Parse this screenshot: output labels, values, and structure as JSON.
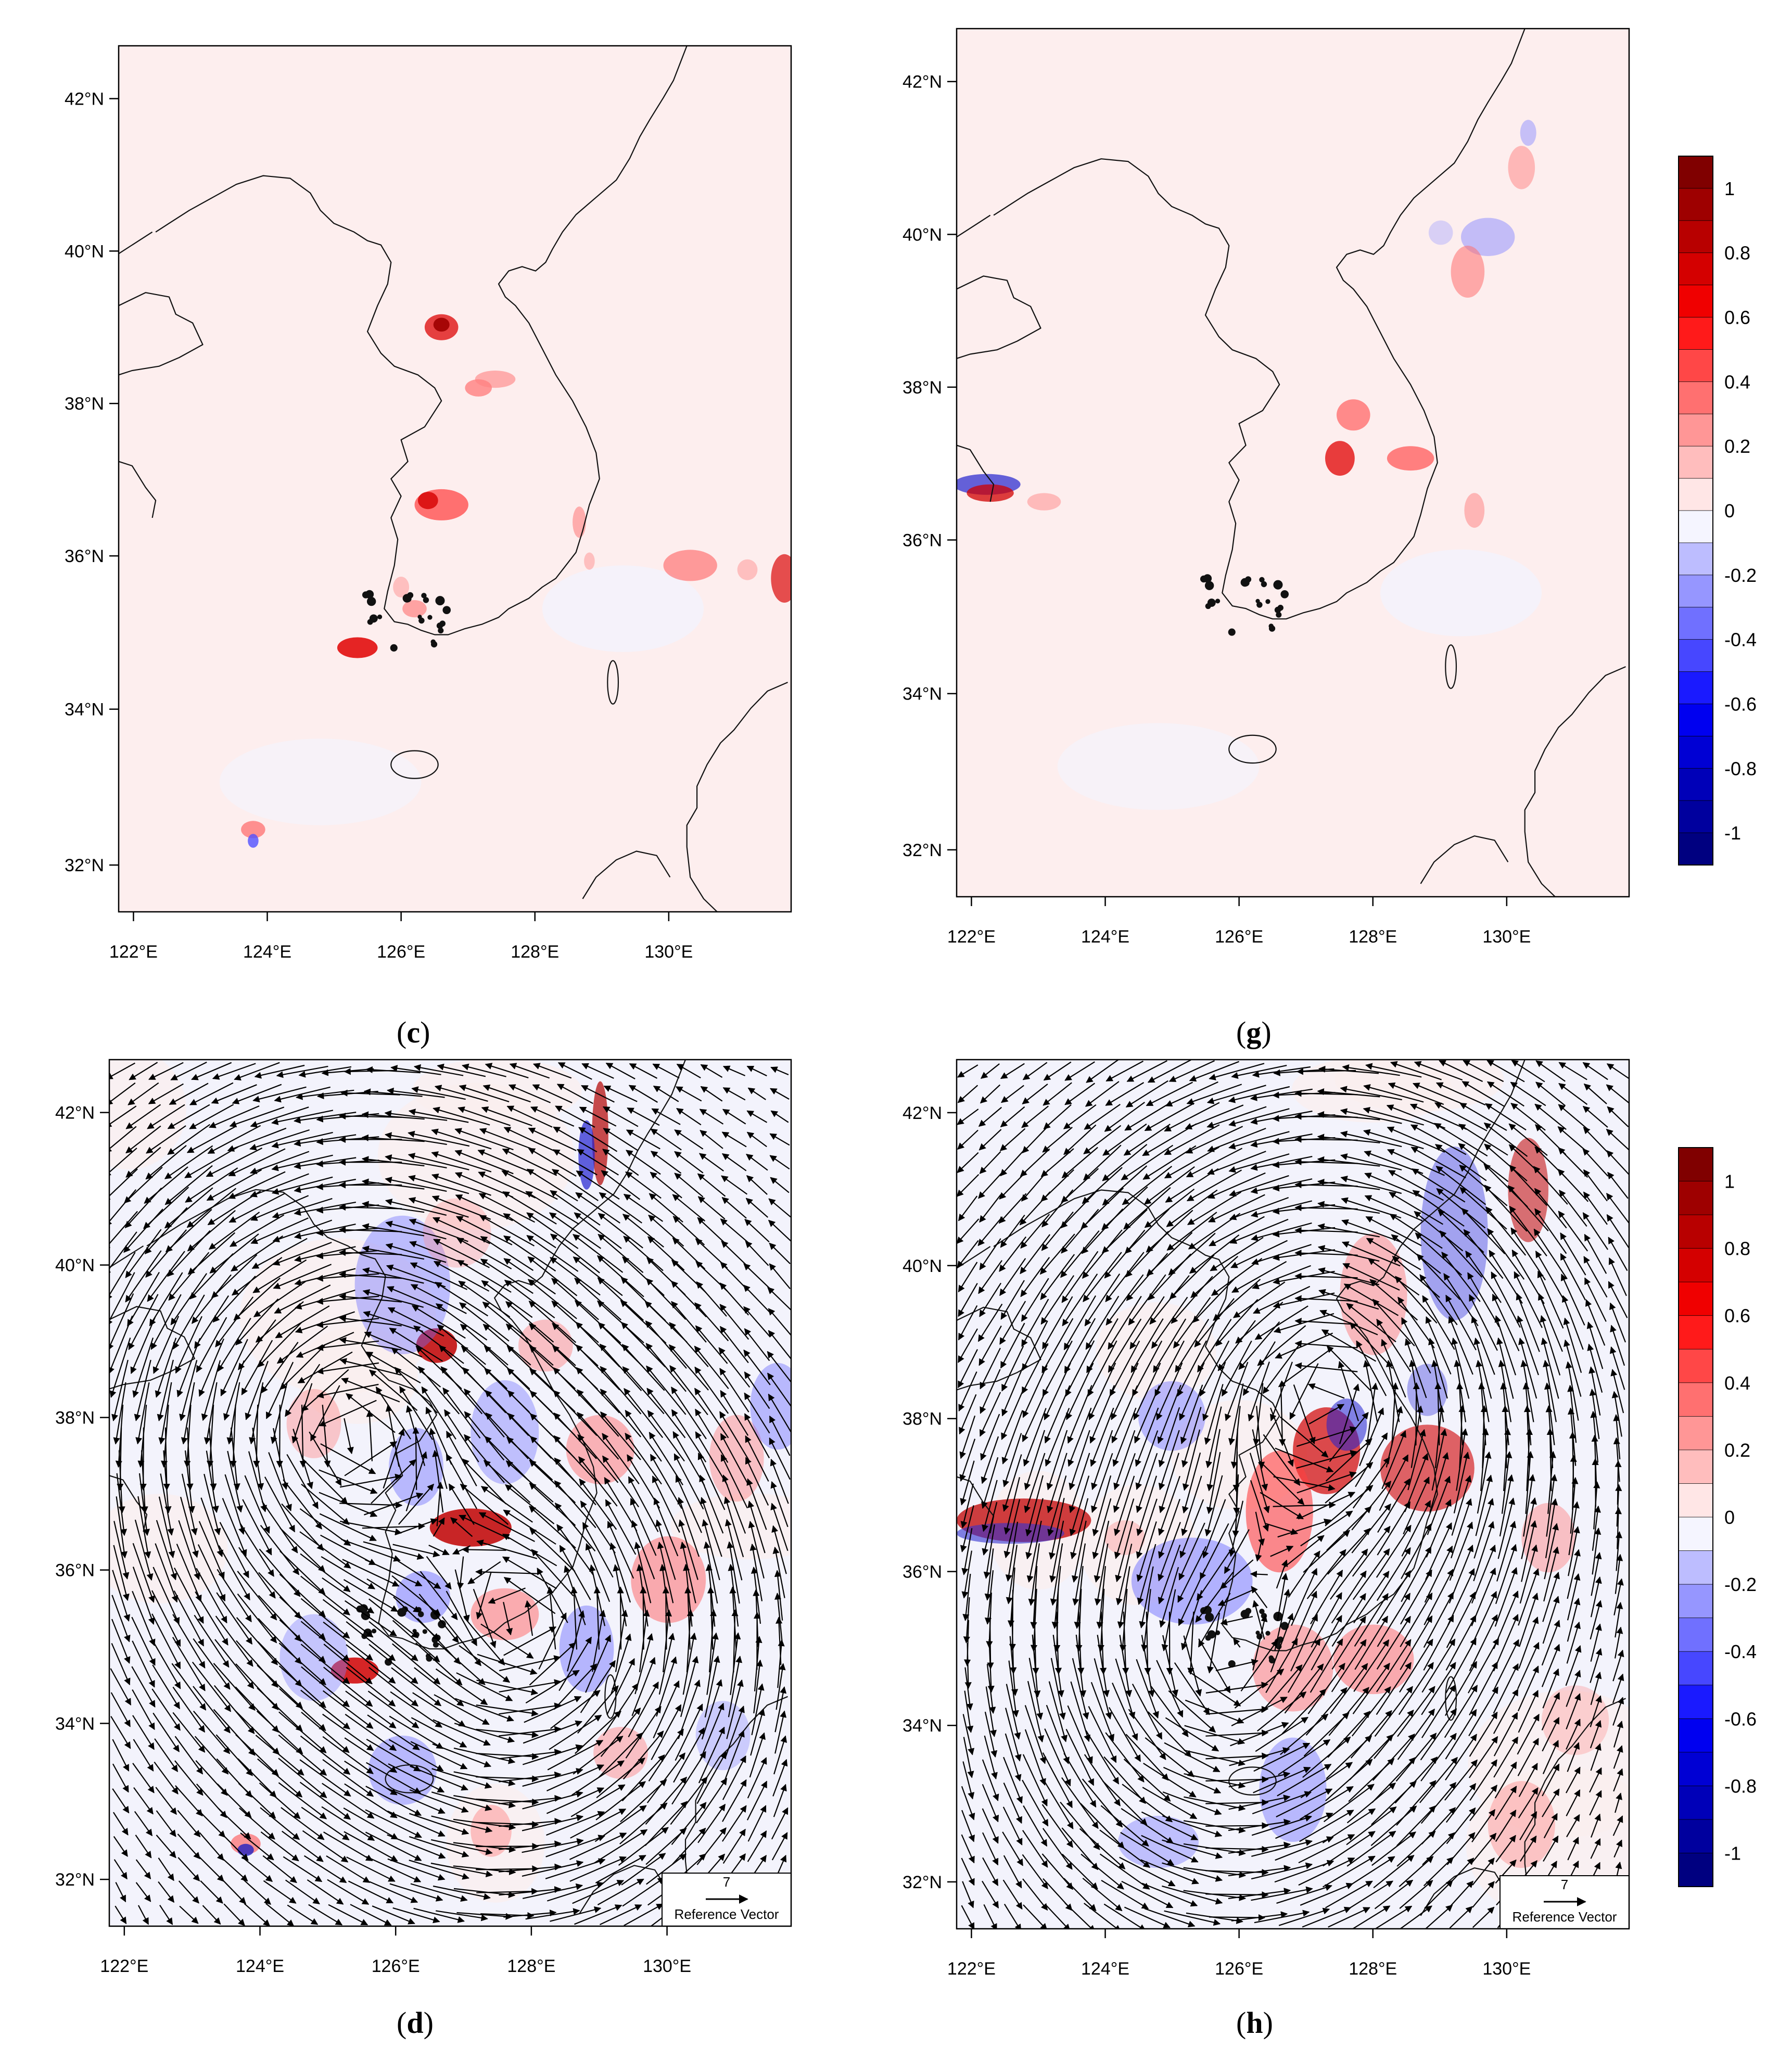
{
  "panels": [
    {
      "id": "c",
      "label": "c",
      "vectors": false,
      "lon_labels": [
        "122°E",
        "124°E",
        "126°E",
        "128°E",
        "130°E"
      ],
      "lat_labels": [
        "42°N",
        "40°N",
        "38°N",
        "36°N",
        "34°N",
        "32°N"
      ]
    },
    {
      "id": "g",
      "label": "g",
      "vectors": false,
      "lon_labels": [
        "122°E",
        "124°E",
        "126°E",
        "128°E",
        "130°E"
      ],
      "lat_labels": [
        "42°N",
        "40°N",
        "38°N",
        "36°N",
        "34°N",
        "32°N"
      ]
    },
    {
      "id": "d",
      "label": "d",
      "vectors": true,
      "lon_labels": [
        "122°E",
        "124°E",
        "126°E",
        "128°E",
        "130°E"
      ],
      "lat_labels": [
        "42°N",
        "40°N",
        "38°N",
        "36°N",
        "34°N",
        "32°N"
      ]
    },
    {
      "id": "h",
      "label": "h",
      "vectors": true,
      "lon_labels": [
        "122°E",
        "124°E",
        "126°E",
        "128°E",
        "130°E"
      ],
      "lat_labels": [
        "42°N",
        "40°N",
        "38°N",
        "36°N",
        "34°N",
        "32°N"
      ]
    }
  ],
  "colorbar": {
    "labels": [
      "1",
      "0.8",
      "0.6",
      "0.4",
      "0.2",
      "0",
      "-0.2",
      "-0.4",
      "-0.6",
      "-0.8",
      "-1"
    ],
    "colors": [
      "#800000",
      "#9e0000",
      "#b80000",
      "#d40000",
      "#f00000",
      "#ff1a1a",
      "#ff4747",
      "#ff7070",
      "#ff9696",
      "#ffbdbd",
      "#ffe6e6",
      "#f5f5ff",
      "#bdbdff",
      "#9696ff",
      "#7070ff",
      "#4747ff",
      "#1a1aff",
      "#0000f0",
      "#0000d4",
      "#0000b8",
      "#00009e",
      "#000080"
    ]
  },
  "reference_vector": {
    "magnitude": "7",
    "label": "Reference Vector"
  },
  "colors": {
    "background_pos": "#fdeeee",
    "background_neg": "#f3f3fc",
    "coast": "#111111"
  }
}
